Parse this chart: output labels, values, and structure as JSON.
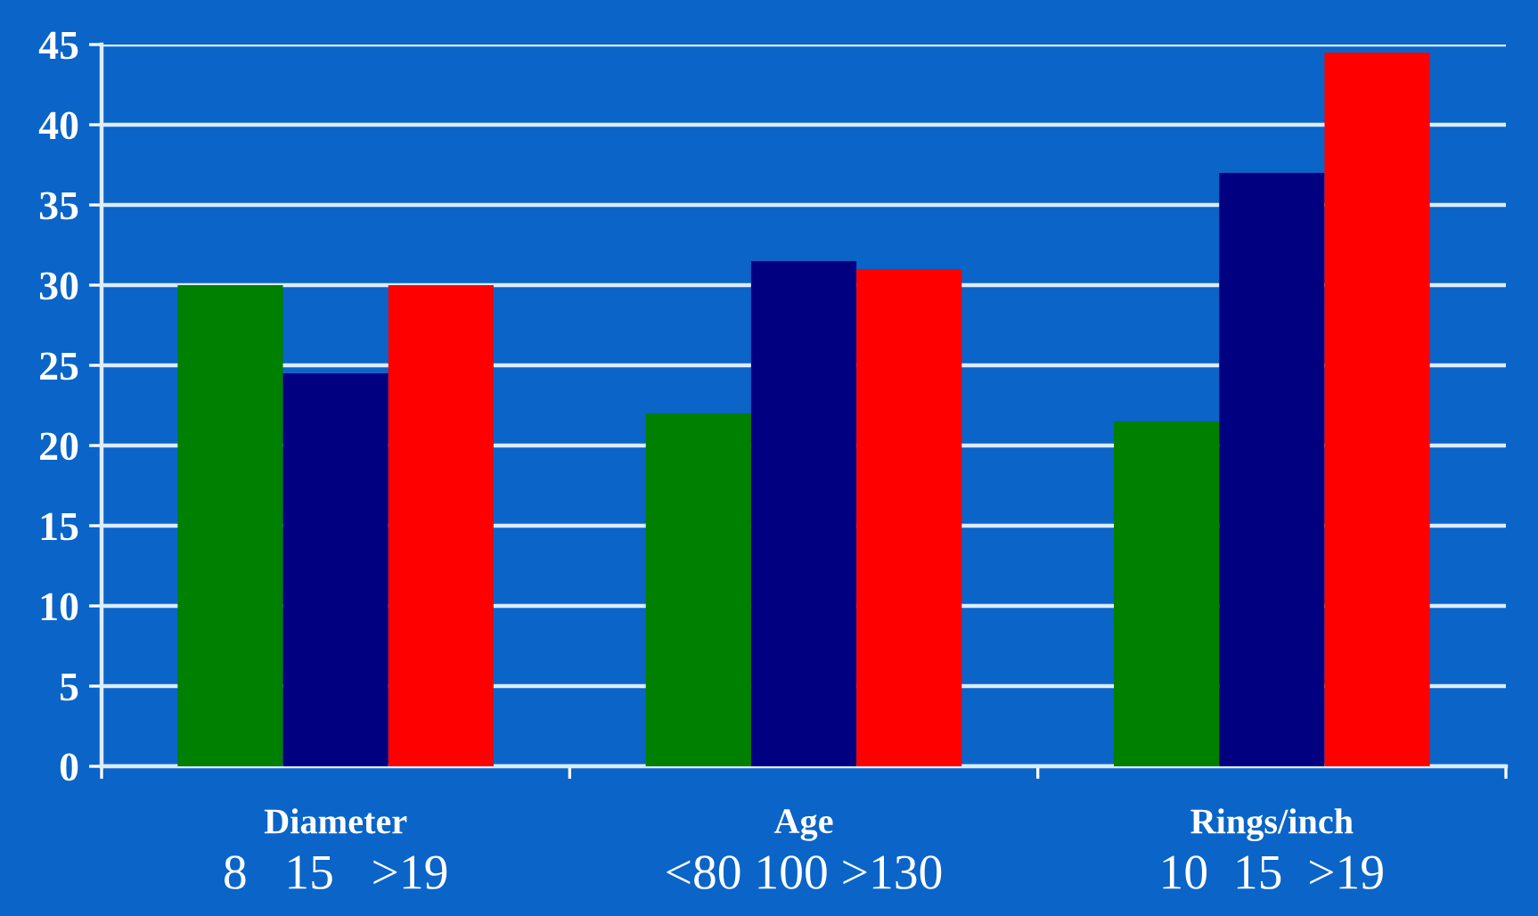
{
  "chart_data": {
    "type": "bar",
    "categories": [
      "Diameter\n8   15   >19",
      "Age\n<80 100 >130",
      "Rings/inch\n10  15  >19"
    ],
    "series": [
      {
        "color": "#008000",
        "values": [
          30,
          22,
          21.5
        ]
      },
      {
        "color": "#000080",
        "values": [
          24.5,
          31.5,
          37
        ]
      },
      {
        "color": "#ff0000",
        "values": [
          30,
          31,
          44.5
        ]
      }
    ],
    "ylim": [
      0,
      45
    ],
    "yticks": [
      0,
      5,
      10,
      15,
      20,
      25,
      30,
      35,
      40,
      45
    ],
    "grid": "y"
  }
}
